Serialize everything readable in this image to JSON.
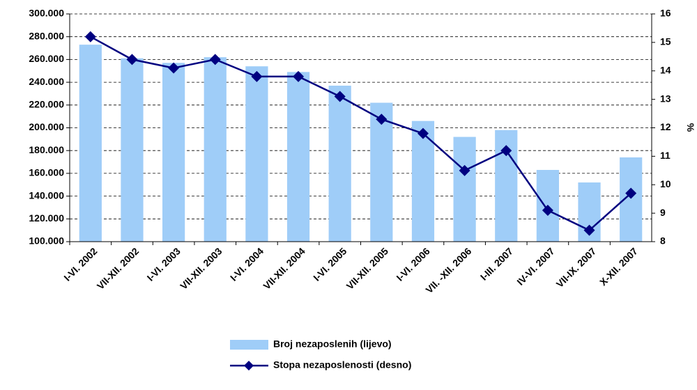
{
  "chart_data": {
    "type": "bar_line",
    "categories": [
      "I-VI. 2002",
      "VII-XII. 2002",
      "I-VI. 2003",
      "VII-XII. 2003",
      "I-VI. 2004",
      "VII-XII. 2004",
      "I-VI. 2005",
      "VII-XII. 2005",
      "I-VI. 2006",
      "VII. -XII. 2006",
      "I-III. 2007",
      "IV-VI. 2007",
      "VII-IX. 2007",
      "X-XII. 2007"
    ],
    "series": [
      {
        "name": "Broj nezaposlenih (lijevo)",
        "type": "bar",
        "color": "#9fcdf8",
        "axis": "y",
        "values": [
          273000,
          261000,
          257000,
          262000,
          254000,
          249000,
          237000,
          222000,
          206000,
          192000,
          198000,
          163000,
          152000,
          174000
        ]
      },
      {
        "name": "Stopa nezaposlenosti (desno)",
        "type": "line",
        "color": "#000080",
        "axis": "y2",
        "values": [
          15.2,
          14.4,
          14.1,
          14.4,
          13.8,
          13.8,
          13.1,
          12.3,
          11.8,
          10.5,
          11.2,
          9.1,
          8.4,
          9.7
        ]
      }
    ],
    "ylim": [
      100000,
      300000
    ],
    "yticks": [
      {
        "value": 100000,
        "label": "100.000"
      },
      {
        "value": 120000,
        "label": "120.000"
      },
      {
        "value": 140000,
        "label": "140.000"
      },
      {
        "value": 160000,
        "label": "160.000"
      },
      {
        "value": 180000,
        "label": "180.000"
      },
      {
        "value": 200000,
        "label": "200.000"
      },
      {
        "value": 220000,
        "label": "220.000"
      },
      {
        "value": 240000,
        "label": "240.000"
      },
      {
        "value": 260000,
        "label": "260.000"
      },
      {
        "value": 280000,
        "label": "280.000"
      },
      {
        "value": 300000,
        "label": "300.000"
      }
    ],
    "y2label": "%",
    "y2lim": [
      8,
      16
    ],
    "y2ticks": [
      8,
      9,
      10,
      11,
      12,
      13,
      14,
      15,
      16
    ],
    "grid": true,
    "legend": "bottom"
  }
}
